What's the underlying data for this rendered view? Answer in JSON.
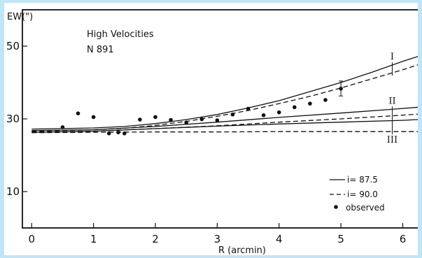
{
  "chart_data": {
    "type": "line",
    "title": "High Velocities",
    "subtitle": "N 891",
    "xlabel": "R (arcmin)",
    "ylabel": "EW(\")",
    "xlim": [
      -0.15,
      6.3
    ],
    "ylim": [
      0,
      60
    ],
    "xticks": [
      0,
      1,
      2,
      3,
      4,
      5,
      6
    ],
    "yticks": [
      10,
      30,
      50
    ],
    "grid": false,
    "legend_position": "bottom-right",
    "legend": [
      {
        "label": "i= 87.5",
        "style": "solid"
      },
      {
        "label": "i= 90.0",
        "style": "dashed"
      },
      {
        "label": "observed",
        "style": "dot"
      }
    ],
    "curve_labels": [
      "I",
      "II",
      "III"
    ],
    "series": [
      {
        "curve": "I",
        "style": "solid",
        "x": [
          0,
          1,
          1.5,
          2,
          2.5,
          3,
          3.5,
          4,
          4.5,
          5,
          5.5,
          6,
          6.25
        ],
        "y": [
          27.2,
          27.5,
          27.9,
          28.7,
          29.8,
          31.2,
          33.0,
          35.0,
          37.5,
          40.0,
          42.8,
          45.8,
          47.2
        ]
      },
      {
        "curve": "I",
        "style": "dashed",
        "x": [
          0,
          1,
          1.5,
          2,
          2.5,
          3,
          3.5,
          4,
          4.5,
          5,
          5.5,
          6,
          6.25
        ],
        "y": [
          26.6,
          27.0,
          27.4,
          28.2,
          29.3,
          30.7,
          32.3,
          34.2,
          36.2,
          38.5,
          41.0,
          43.5,
          44.9
        ]
      },
      {
        "curve": "II",
        "style": "solid",
        "x": [
          0,
          1,
          2,
          3,
          4,
          5,
          5.8,
          6.25
        ],
        "y": [
          26.8,
          27.0,
          27.9,
          29.1,
          30.4,
          31.6,
          32.6,
          33.2
        ]
      },
      {
        "curve": "II",
        "style": "dashed",
        "x": [
          0,
          1,
          2,
          3,
          4,
          5,
          5.8,
          6.25
        ],
        "y": [
          26.4,
          26.6,
          27.3,
          28.1,
          29.1,
          30.0,
          30.8,
          31.3
        ]
      },
      {
        "curve": "III",
        "style": "solid",
        "x": [
          0,
          1,
          2,
          3,
          4,
          5,
          6,
          6.25
        ],
        "y": [
          26.3,
          26.6,
          27.3,
          28.0,
          28.6,
          29.1,
          29.6,
          29.8
        ]
      },
      {
        "curve": "III",
        "style": "dashed",
        "x": [
          0,
          1,
          2,
          3,
          4,
          5,
          6,
          6.25
        ],
        "y": [
          26.2,
          26.3,
          26.4,
          26.4,
          26.5,
          26.5,
          26.5,
          26.5
        ]
      }
    ],
    "observed": {
      "x": [
        0.5,
        0.75,
        1.0,
        1.25,
        1.4,
        1.5,
        1.75,
        2.0,
        2.25,
        2.5,
        2.75,
        3.0,
        3.25,
        3.5,
        3.75,
        4.0,
        4.25,
        4.5,
        4.75,
        5.0
      ],
      "y": [
        27.7,
        31.5,
        30.5,
        26.0,
        26.3,
        26.0,
        29.8,
        30.5,
        29.7,
        29.0,
        29.9,
        29.6,
        31.2,
        32.8,
        31.0,
        31.8,
        33.2,
        34.2,
        35.2,
        38.3
      ],
      "error_bars": [
        {
          "x": 5.0,
          "y": 38.3,
          "low": 36.3,
          "high": 40.4
        }
      ]
    }
  }
}
